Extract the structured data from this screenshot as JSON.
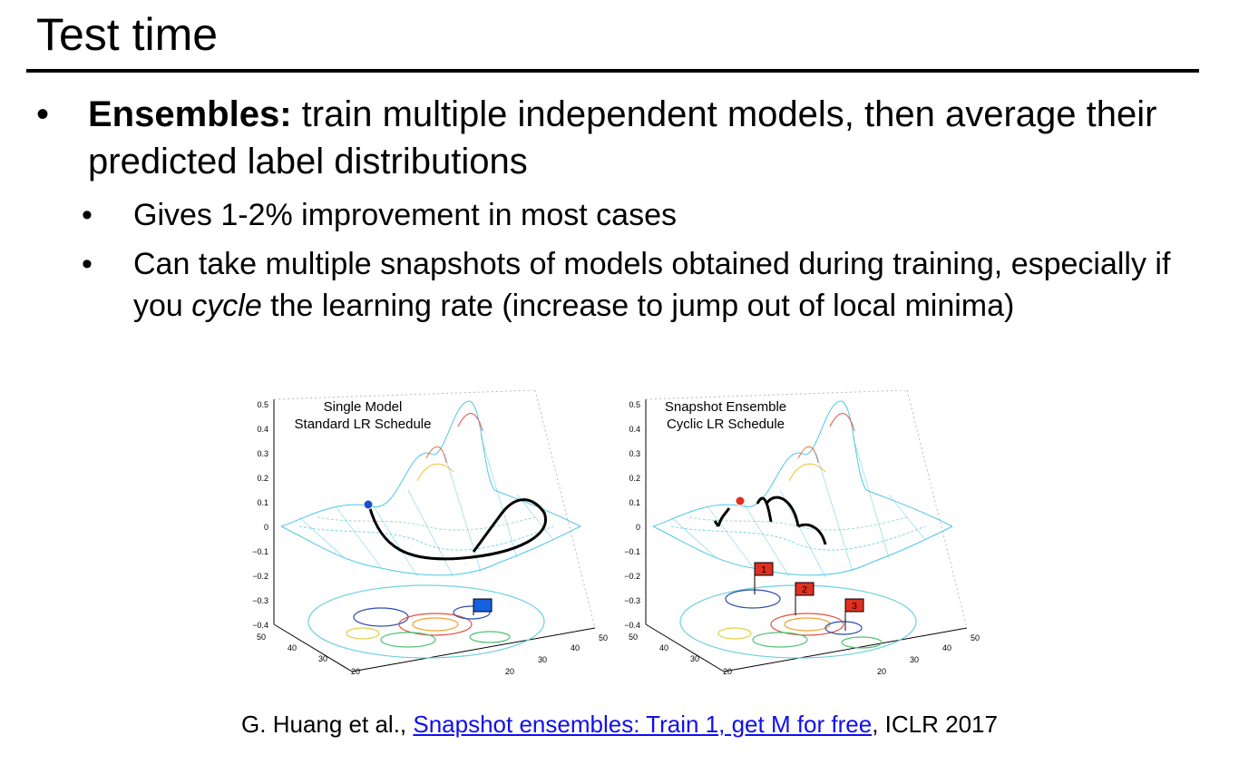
{
  "slide": {
    "title": "Test time",
    "bullet_main_bold": "Ensembles:",
    "bullet_main_rest": " train multiple independent models, then average their predicted label distributions",
    "sub_bullets": [
      {
        "text": "Gives 1-2% improvement in most cases"
      },
      {
        "pre": "Can take multiple snapshots of models obtained during training, especially if you ",
        "italic": "cycle",
        "post": " the learning rate (increase to jump out of local minima)"
      }
    ],
    "bullet_glyph": "•"
  },
  "figures": {
    "left": {
      "title_line1": "Single Model",
      "title_line2": "Standard LR Schedule",
      "z_ticks": [
        "0.5",
        "0.4",
        "0.3",
        "0.2",
        "0.1",
        "0",
        "−0.1",
        "−0.2",
        "−0.3",
        "−0.4"
      ],
      "axis_a_ticks": [
        "50",
        "40",
        "30",
        "20"
      ],
      "axis_b_ticks": [
        "20",
        "30",
        "40",
        "50"
      ],
      "flag_color": "#1560e0"
    },
    "right": {
      "title_line1": "Snapshot Ensemble",
      "title_line2": "Cyclic LR Schedule",
      "z_ticks": [
        "0.5",
        "0.4",
        "0.3",
        "0.2",
        "0.1",
        "0",
        "−0.1",
        "−0.2",
        "−0.3",
        "−0.4"
      ],
      "axis_a_ticks": [
        "50",
        "40",
        "30",
        "20"
      ],
      "axis_b_ticks": [
        "20",
        "30",
        "40",
        "50"
      ],
      "flag_labels": [
        "1",
        "2",
        "3"
      ],
      "flag_color": "#e03020"
    }
  },
  "citation": {
    "authors": "G. Huang et al., ",
    "link_text": "Snapshot ensembles: Train 1, get M for free",
    "venue": ", ICLR 2017"
  }
}
